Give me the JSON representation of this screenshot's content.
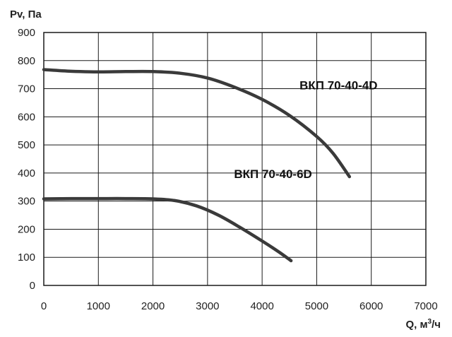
{
  "chart_data": {
    "type": "line",
    "title": "",
    "ylabel": "Pv, Па",
    "xlabel_main": "Q, м",
    "xlabel_sup": "3",
    "xlabel_tail": "/ч",
    "xlim": [
      0,
      7000
    ],
    "ylim": [
      0,
      900
    ],
    "xticks": [
      0,
      1000,
      2000,
      3000,
      4000,
      5000,
      6000,
      7000
    ],
    "yticks": [
      0,
      100,
      200,
      300,
      400,
      500,
      600,
      700,
      800,
      900
    ],
    "grid": true,
    "series": [
      {
        "name": "ВКП 70-40-4D",
        "color": "#3a3a3a",
        "points": [
          [
            0,
            768
          ],
          [
            500,
            762
          ],
          [
            1000,
            760
          ],
          [
            1500,
            761
          ],
          [
            2000,
            761
          ],
          [
            2500,
            755
          ],
          [
            3000,
            738
          ],
          [
            3500,
            705
          ],
          [
            4000,
            662
          ],
          [
            4500,
            605
          ],
          [
            5000,
            530
          ],
          [
            5300,
            470
          ],
          [
            5600,
            387
          ]
        ]
      },
      {
        "name": "ВКП 70-40-6D",
        "color": "#3a3a3a",
        "points": [
          [
            0,
            308
          ],
          [
            500,
            309
          ],
          [
            1000,
            309
          ],
          [
            1500,
            309
          ],
          [
            2000,
            308
          ],
          [
            2400,
            302
          ],
          [
            2800,
            283
          ],
          [
            3200,
            250
          ],
          [
            3600,
            206
          ],
          [
            4000,
            158
          ],
          [
            4300,
            120
          ],
          [
            4530,
            88
          ]
        ]
      }
    ],
    "series_label_positions": [
      {
        "series": 0,
        "anchor": [
          5400,
          697
        ]
      },
      {
        "series": 1,
        "anchor": [
          4200,
          382
        ]
      }
    ]
  }
}
